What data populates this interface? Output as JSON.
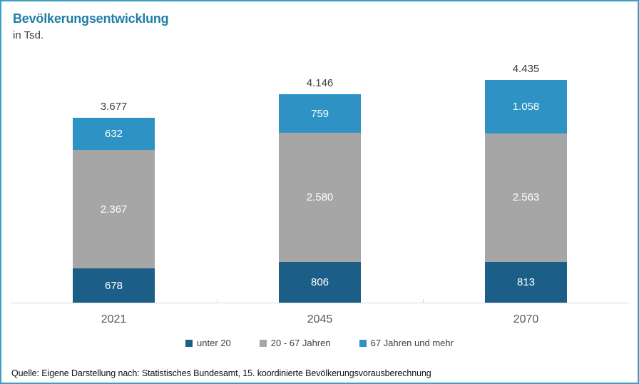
{
  "header": {
    "title": "Bevölkerungsentwicklung",
    "subtitle": "in Tsd."
  },
  "colors": {
    "frame_border": "#3D9EC4",
    "title_text": "#1E7EA8",
    "axis_line": "#D9D9D9",
    "total_label_text": "#404040",
    "year_label_text": "#595959",
    "segment_label_text": "#FFFFFF",
    "series_under_20": "#1B5E88",
    "series_20_67": "#A6A6A6",
    "series_67_plus": "#2E93C4"
  },
  "chart_data": {
    "type": "bar",
    "stacked": true,
    "title": "Bevölkerungsentwicklung",
    "unit_label": "in Tsd.",
    "categories": [
      "2021",
      "2045",
      "2070"
    ],
    "series": [
      {
        "name": "unter 20",
        "color": "#1B5E88",
        "values": [
          678,
          806,
          813
        ],
        "labels": [
          "678",
          "806",
          "813"
        ]
      },
      {
        "name": "20 - 67 Jahren",
        "color": "#A6A6A6",
        "values": [
          2367,
          2580,
          2563
        ],
        "labels": [
          "2.367",
          "2.580",
          "2.563"
        ]
      },
      {
        "name": "67 Jahren und mehr",
        "color": "#2E93C4",
        "values": [
          632,
          759,
          1058
        ],
        "labels": [
          "632",
          "759",
          "1.058"
        ]
      }
    ],
    "totals": [
      3677,
      4146,
      4435
    ],
    "total_labels": [
      "3.677",
      "4.146",
      "4.435"
    ],
    "ylim": [
      0,
      4435
    ],
    "grid": false,
    "legend_position": "bottom"
  },
  "footer": {
    "source": "Quelle: Eigene Darstellung nach: Statistisches Bundesamt, 15. koordinierte Bevölkerungsvorausberechnung"
  }
}
